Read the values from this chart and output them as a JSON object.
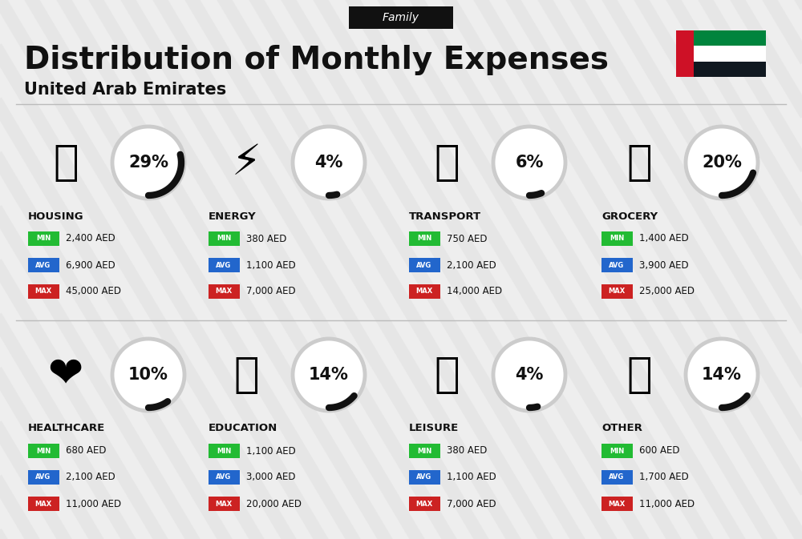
{
  "title": "Distribution of Monthly Expenses",
  "subtitle": "United Arab Emirates",
  "header_label": "Family",
  "bg_color": "#eeeeee",
  "categories": [
    {
      "name": "HOUSING",
      "percent": 29,
      "icon": "🏙",
      "min": "2,400 AED",
      "avg": "6,900 AED",
      "max": "45,000 AED",
      "row": 0,
      "col": 0
    },
    {
      "name": "ENERGY",
      "percent": 4,
      "icon": "⚡",
      "min": "380 AED",
      "avg": "1,100 AED",
      "max": "7,000 AED",
      "row": 0,
      "col": 1
    },
    {
      "name": "TRANSPORT",
      "percent": 6,
      "icon": "🚌",
      "min": "750 AED",
      "avg": "2,100 AED",
      "max": "14,000 AED",
      "row": 0,
      "col": 2
    },
    {
      "name": "GROCERY",
      "percent": 20,
      "icon": "🛒",
      "min": "1,400 AED",
      "avg": "3,900 AED",
      "max": "25,000 AED",
      "row": 0,
      "col": 3
    },
    {
      "name": "HEALTHCARE",
      "percent": 10,
      "icon": "❤️",
      "min": "680 AED",
      "avg": "2,100 AED",
      "max": "11,000 AED",
      "row": 1,
      "col": 0
    },
    {
      "name": "EDUCATION",
      "percent": 14,
      "icon": "🎓",
      "min": "1,100 AED",
      "avg": "3,000 AED",
      "max": "20,000 AED",
      "row": 1,
      "col": 1
    },
    {
      "name": "LEISURE",
      "percent": 4,
      "icon": "🛍",
      "min": "380 AED",
      "avg": "1,100 AED",
      "max": "7,000 AED",
      "row": 1,
      "col": 2
    },
    {
      "name": "OTHER",
      "percent": 14,
      "icon": "💰",
      "min": "600 AED",
      "avg": "1,700 AED",
      "max": "11,000 AED",
      "row": 1,
      "col": 3
    }
  ],
  "min_color": "#22bb33",
  "avg_color": "#2266cc",
  "max_color": "#cc2222",
  "text_color": "#111111",
  "circle_bg": "#ffffff",
  "circle_edge": "#cccccc",
  "arc_color": "#111111",
  "stripe_color": "#e4e4e4",
  "title_fontsize": 28,
  "subtitle_fontsize": 15,
  "percent_fontsize": 15,
  "cat_fontsize": 9.5,
  "val_fontsize": 8.5,
  "badge_fontsize": 6
}
